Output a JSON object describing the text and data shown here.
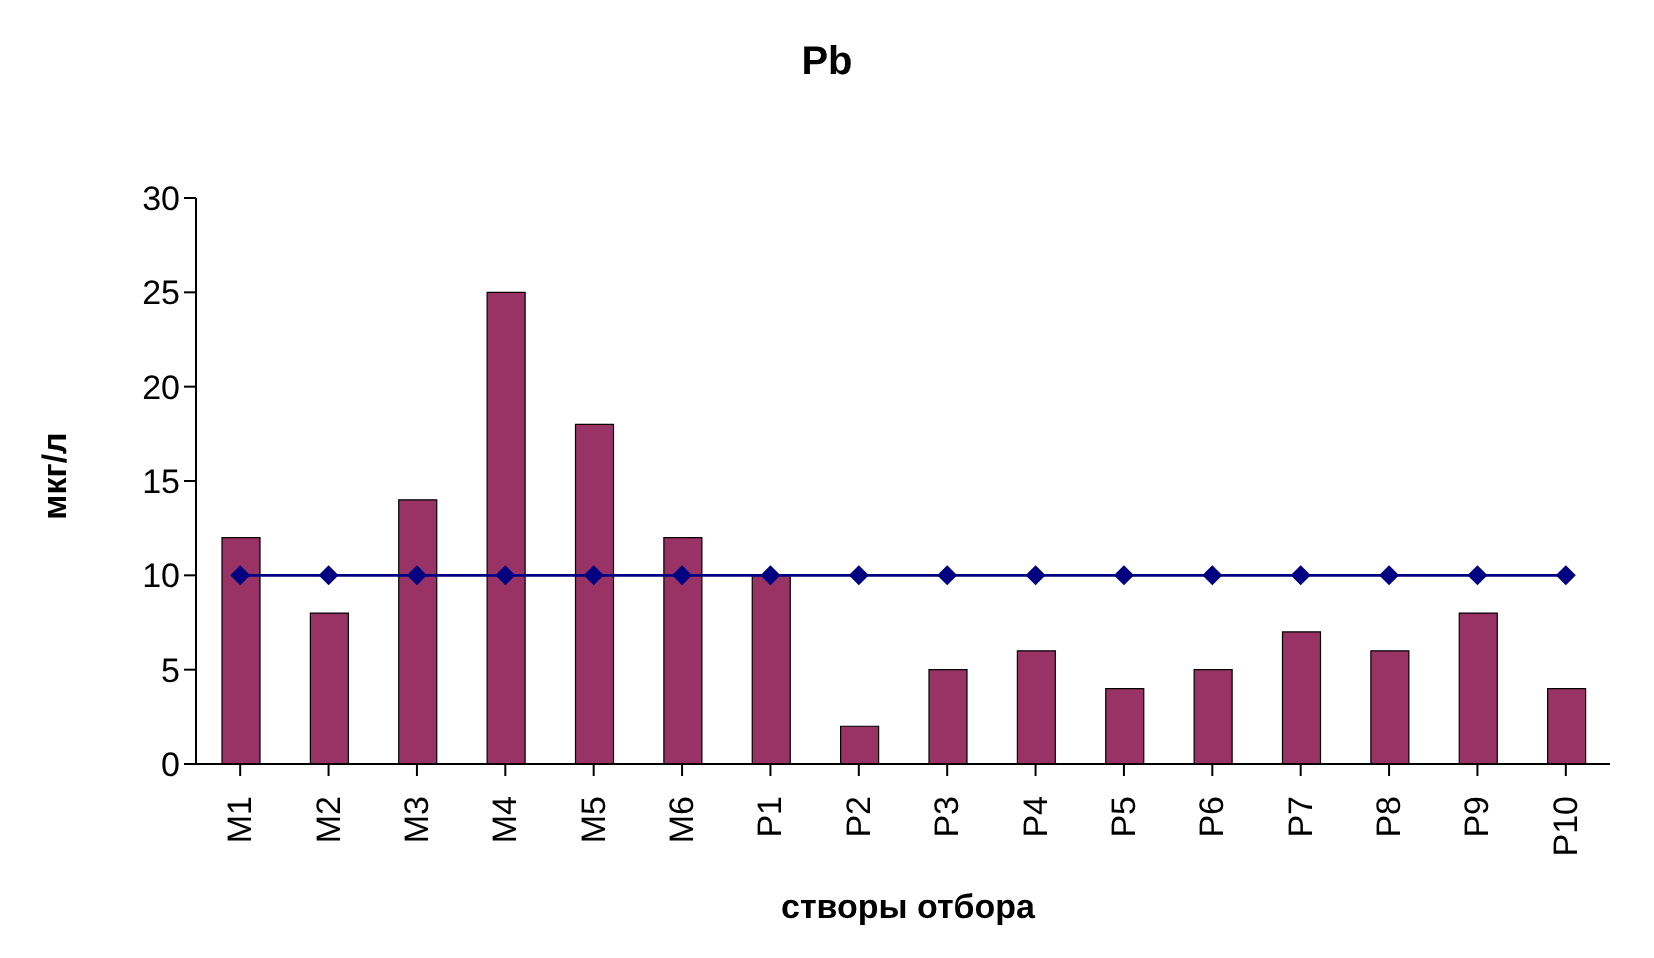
{
  "chart_data": {
    "type": "bar",
    "title": "Pb",
    "xlabel": "створы отбора",
    "ylabel": "мкг/л",
    "categories": [
      "М1",
      "М2",
      "М3",
      "М4",
      "М5",
      "М6",
      "Р1",
      "Р2",
      "Р3",
      "Р4",
      "Р5",
      "Р6",
      "Р7",
      "Р8",
      "Р9",
      "Р10"
    ],
    "series": [
      {
        "color": "#993366",
        "values": [
          12,
          8,
          14,
          25,
          18,
          12,
          10,
          2,
          5,
          6,
          4,
          5,
          7,
          6,
          8,
          4
        ]
      },
      {
        "type": "line",
        "color": "#000080",
        "marker": "diamond",
        "values": [
          10,
          10,
          10,
          10,
          10,
          10,
          10,
          10,
          10,
          10,
          10,
          10,
          10,
          10,
          10,
          10
        ]
      }
    ],
    "ylim": [
      0,
      30
    ],
    "yticks": [
      0,
      5,
      10,
      15,
      20,
      25,
      30
    ],
    "grid": false,
    "legend": false
  }
}
